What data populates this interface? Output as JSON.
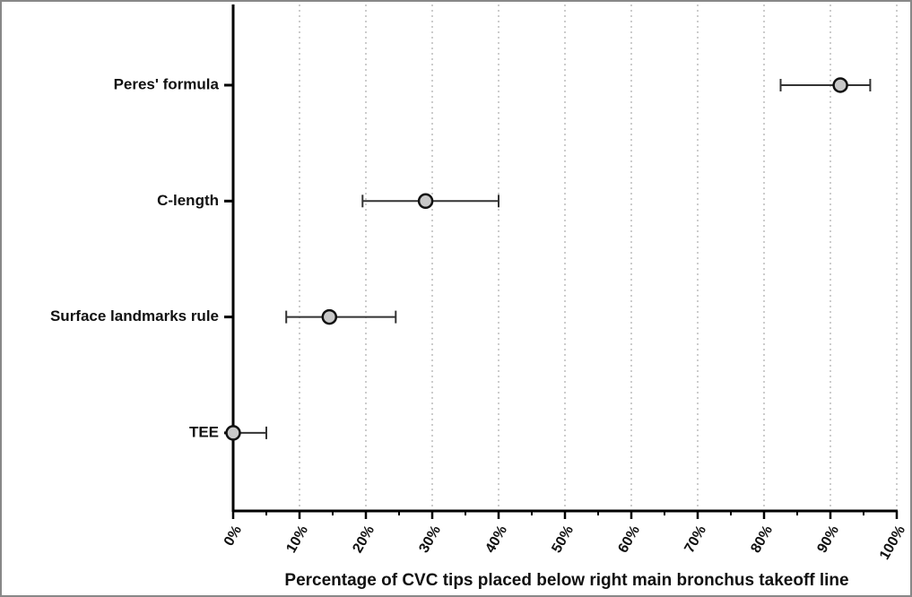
{
  "chart_data": {
    "type": "errorbar-dot",
    "xlabel": "Percentage of CVC tips placed below right main bronchus takeoff line",
    "categories": [
      "Peres' formula",
      "C-length",
      "Surface landmarks rule",
      "TEE"
    ],
    "series": [
      {
        "color": "#c8c8c8",
        "values": [
          91.5,
          29,
          14.5,
          0
        ],
        "lower": [
          82.5,
          19.5,
          8,
          0
        ],
        "upper": [
          96,
          40,
          24.5,
          5
        ]
      }
    ],
    "xlim": [
      0,
      100
    ],
    "xticks": [
      {
        "value": 0,
        "label": "0%"
      },
      {
        "value": 10,
        "label": "10%"
      },
      {
        "value": 20,
        "label": "20%"
      },
      {
        "value": 30,
        "label": "30%"
      },
      {
        "value": 40,
        "label": "40%"
      },
      {
        "value": 50,
        "label": "50%"
      },
      {
        "value": 60,
        "label": "60%"
      },
      {
        "value": 70,
        "label": "70%"
      },
      {
        "value": 80,
        "label": "80%"
      },
      {
        "value": 90,
        "label": "90%"
      },
      {
        "value": 100,
        "label": "100%"
      }
    ],
    "xminorticks": [
      5,
      15,
      25,
      35,
      45,
      55,
      65,
      75,
      85,
      95
    ],
    "grid": true
  }
}
